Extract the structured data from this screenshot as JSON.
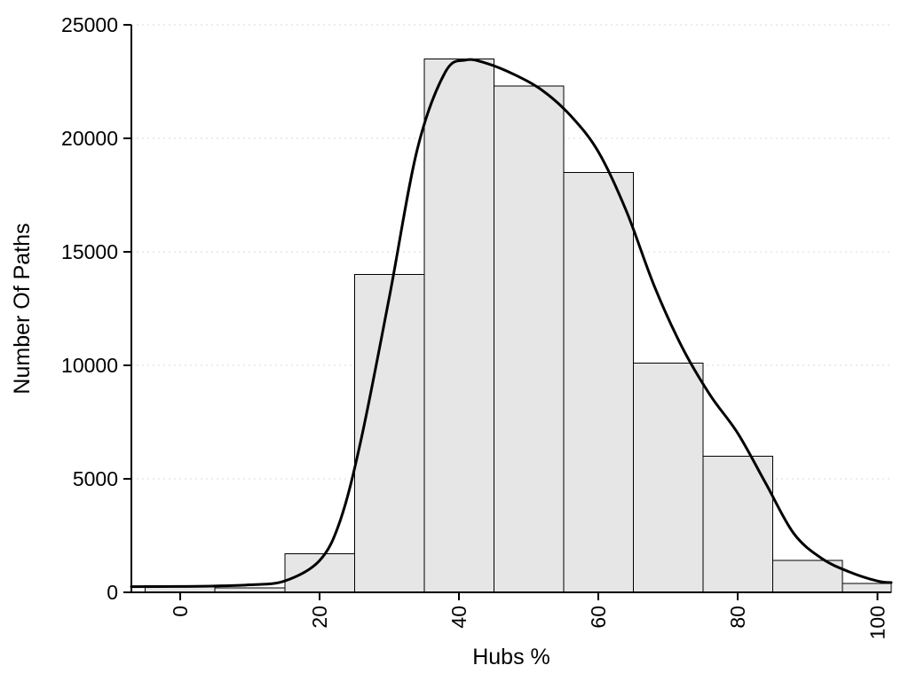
{
  "chart_data": {
    "type": "bar",
    "subtype": "histogram-with-density-curve",
    "title": "",
    "xlabel": "Hubs %",
    "ylabel": "Number Of Paths",
    "xlim": [
      -7,
      102
    ],
    "ylim": [
      0,
      25000
    ],
    "grid": true,
    "legend": "none",
    "xticks": [
      0,
      20,
      40,
      60,
      80,
      100
    ],
    "xtick_labels": [
      "0",
      "20",
      "40",
      "60",
      "80",
      "100"
    ],
    "xtick_rotation_deg": -90,
    "yticks": [
      0,
      5000,
      10000,
      15000,
      20000,
      25000
    ],
    "ytick_labels": [
      "0",
      "5000",
      "10000",
      "15000",
      "20000",
      "25000"
    ],
    "bins": [
      [
        -5,
        5
      ],
      [
        5,
        15
      ],
      [
        15,
        25
      ],
      [
        25,
        35
      ],
      [
        35,
        45
      ],
      [
        45,
        55
      ],
      [
        55,
        65
      ],
      [
        65,
        75
      ],
      [
        75,
        85
      ],
      [
        85,
        95
      ],
      [
        95,
        105
      ]
    ],
    "values": [
      300,
      200,
      1700,
      14000,
      23500,
      22300,
      18500,
      10100,
      6000,
      1400,
      400
    ],
    "bar_fill": "#e6e6e6",
    "bar_stroke": "#000000",
    "curve_color": "#000000",
    "curve_width": 3,
    "curve": {
      "x": [
        -7,
        0,
        5,
        10,
        15,
        20,
        23,
        26,
        30,
        34,
        38,
        41,
        44,
        48,
        52,
        56,
        60,
        64,
        68,
        72,
        76,
        80,
        84,
        88,
        92,
        96,
        100,
        102
      ],
      "y": [
        250,
        260,
        280,
        330,
        500,
        1400,
        3200,
        6800,
        13000,
        19500,
        22900,
        23450,
        23300,
        22800,
        22100,
        21000,
        19400,
        16800,
        13500,
        10800,
        8700,
        7000,
        4800,
        2600,
        1500,
        900,
        500,
        430
      ]
    }
  }
}
